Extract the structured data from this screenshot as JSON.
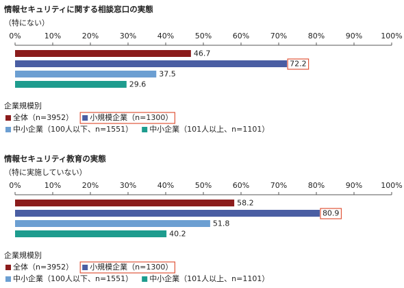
{
  "chart_data": [
    {
      "type": "hbar",
      "title": "情報セキュリティに関する相談窓口の実態",
      "subtitle": "（特にない）",
      "xlim": [
        0,
        100
      ],
      "xticks": [
        {
          "value": 0,
          "label": "0%"
        },
        {
          "value": 10,
          "label": "10%"
        },
        {
          "value": 20,
          "label": "20%"
        },
        {
          "value": 30,
          "label": "30%"
        },
        {
          "value": 40,
          "label": "40%"
        },
        {
          "value": 50,
          "label": "50%"
        },
        {
          "value": 60,
          "label": "60%"
        },
        {
          "value": 70,
          "label": "70%"
        },
        {
          "value": 80,
          "label": "80%"
        },
        {
          "value": 90,
          "label": "90%"
        },
        {
          "value": 100,
          "label": "100%"
        }
      ],
      "legend_title": "企業規模別",
      "highlight_series": 1,
      "series": [
        {
          "name": "全体（n=3952）",
          "color": "#8b1c1c",
          "values": [
            46.7
          ]
        },
        {
          "name": "小規模企業（n=1300）",
          "color": "#4a5ea3",
          "values": [
            72.2
          ]
        },
        {
          "name": "中小企業（100人以下、n=1551）",
          "color": "#6c9fd2",
          "values": [
            37.5
          ]
        },
        {
          "name": "中小企業（101人以上、n=1101）",
          "color": "#1e9c8e",
          "values": [
            29.6
          ]
        }
      ]
    },
    {
      "type": "hbar",
      "title": "情報セキュリティ教育の実態",
      "subtitle": "（特に実施していない）",
      "xlim": [
        0,
        100
      ],
      "xticks": [
        {
          "value": 0,
          "label": "0%"
        },
        {
          "value": 10,
          "label": "10%"
        },
        {
          "value": 20,
          "label": "20%"
        },
        {
          "value": 30,
          "label": "30%"
        },
        {
          "value": 40,
          "label": "40%"
        },
        {
          "value": 50,
          "label": "50%"
        },
        {
          "value": 60,
          "label": "60%"
        },
        {
          "value": 70,
          "label": "70%"
        },
        {
          "value": 80,
          "label": "80%"
        },
        {
          "value": 90,
          "label": "90%"
        },
        {
          "value": 100,
          "label": "100%"
        }
      ],
      "legend_title": "企業規模別",
      "highlight_series": 1,
      "series": [
        {
          "name": "全体（n=3952）",
          "color": "#8b1c1c",
          "values": [
            58.2
          ]
        },
        {
          "name": "小規模企業（n=1300）",
          "color": "#4a5ea3",
          "values": [
            80.9
          ]
        },
        {
          "name": "中小企業（100人以下、n=1551）",
          "color": "#6c9fd2",
          "values": [
            51.8
          ]
        },
        {
          "name": "中小企業（101人以上、n=1101）",
          "color": "#1e9c8e",
          "values": [
            40.2
          ]
        }
      ]
    }
  ]
}
